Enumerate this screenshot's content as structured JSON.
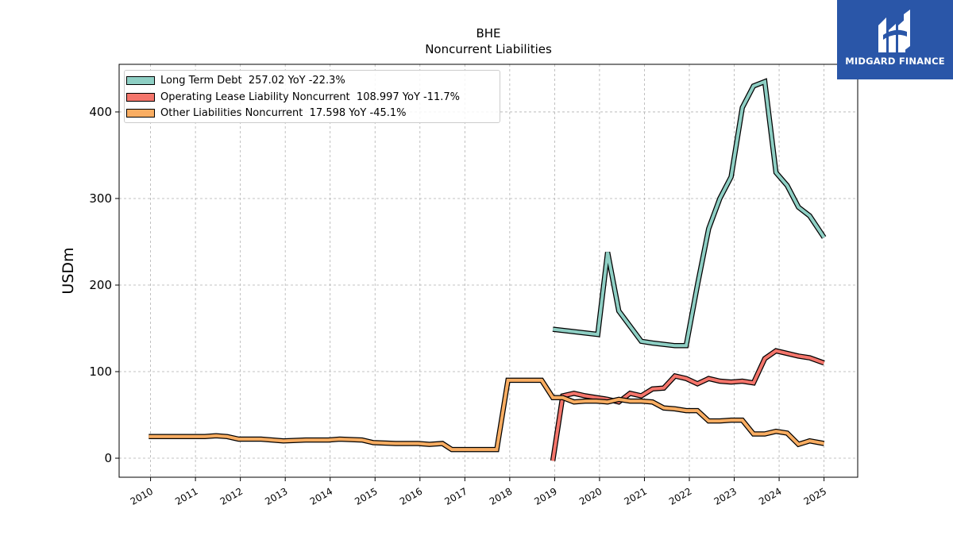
{
  "chart_data": {
    "type": "line",
    "title": "BHE",
    "subtitle": "Noncurrent  Liabilities",
    "ylabel": "USDm",
    "xlabel": "",
    "ylim": [
      -22,
      455
    ],
    "xlim": [
      2009.3,
      2025.75
    ],
    "yticks": [
      0,
      100,
      200,
      300,
      400
    ],
    "xticks": [
      "2010",
      "2011",
      "2012",
      "2013",
      "2014",
      "2015",
      "2016",
      "2017",
      "2018",
      "2019",
      "2020",
      "2021",
      "2022",
      "2023",
      "2024",
      "2025"
    ],
    "grid": true,
    "legend_position": "top-left",
    "series": [
      {
        "name": "Long Term Debt  257.02 YoY -22.3%",
        "color": "#8ecfc4",
        "points": [
          [
            2018.96,
            149
          ],
          [
            2019.96,
            143
          ],
          [
            2020.18,
            238
          ],
          [
            2020.43,
            170
          ],
          [
            2020.93,
            135
          ],
          [
            2021.18,
            133
          ],
          [
            2021.68,
            130
          ],
          [
            2021.93,
            130
          ],
          [
            2022.18,
            200
          ],
          [
            2022.43,
            265
          ],
          [
            2022.68,
            300
          ],
          [
            2022.93,
            325
          ],
          [
            2023.18,
            405
          ],
          [
            2023.43,
            430
          ],
          [
            2023.68,
            435
          ],
          [
            2023.93,
            330
          ],
          [
            2024.18,
            315
          ],
          [
            2024.43,
            290
          ],
          [
            2024.68,
            280
          ],
          [
            2025.0,
            255
          ]
        ]
      },
      {
        "name": "Operating Lease Liability Noncurrent  108.997 YoY -11.7%",
        "color": "#f4756b",
        "points": [
          [
            2018.96,
            -3
          ],
          [
            2019.18,
            72
          ],
          [
            2019.43,
            75
          ],
          [
            2019.68,
            72
          ],
          [
            2019.93,
            70
          ],
          [
            2020.18,
            68
          ],
          [
            2020.43,
            65
          ],
          [
            2020.68,
            75
          ],
          [
            2020.93,
            72
          ],
          [
            2021.18,
            80
          ],
          [
            2021.43,
            81
          ],
          [
            2021.68,
            95
          ],
          [
            2021.93,
            92
          ],
          [
            2022.18,
            86
          ],
          [
            2022.43,
            92
          ],
          [
            2022.68,
            89
          ],
          [
            2022.93,
            88
          ],
          [
            2023.18,
            89
          ],
          [
            2023.43,
            87
          ],
          [
            2023.68,
            115
          ],
          [
            2023.93,
            124
          ],
          [
            2024.18,
            121
          ],
          [
            2024.43,
            118
          ],
          [
            2024.68,
            116
          ],
          [
            2025.0,
            110
          ]
        ]
      },
      {
        "name": "Other Liabilities Noncurrent  17.598 YoY -45.1%",
        "color": "#f9ad62",
        "points": [
          [
            2009.96,
            25
          ],
          [
            2010.46,
            25
          ],
          [
            2010.96,
            25
          ],
          [
            2011.21,
            25
          ],
          [
            2011.46,
            26
          ],
          [
            2011.71,
            25
          ],
          [
            2011.96,
            22
          ],
          [
            2012.46,
            22
          ],
          [
            2012.96,
            20
          ],
          [
            2013.46,
            21
          ],
          [
            2013.96,
            21
          ],
          [
            2014.21,
            22
          ],
          [
            2014.71,
            21
          ],
          [
            2014.96,
            18
          ],
          [
            2015.46,
            17
          ],
          [
            2015.96,
            17
          ],
          [
            2016.21,
            16
          ],
          [
            2016.5,
            17
          ],
          [
            2016.71,
            10
          ],
          [
            2017.21,
            10
          ],
          [
            2017.71,
            10
          ],
          [
            2017.96,
            90
          ],
          [
            2018.21,
            90
          ],
          [
            2018.71,
            90
          ],
          [
            2018.96,
            70
          ],
          [
            2019.18,
            70
          ],
          [
            2019.43,
            65
          ],
          [
            2019.68,
            66
          ],
          [
            2019.93,
            66
          ],
          [
            2020.18,
            65
          ],
          [
            2020.43,
            68
          ],
          [
            2020.68,
            66
          ],
          [
            2020.93,
            66
          ],
          [
            2021.18,
            65
          ],
          [
            2021.43,
            58
          ],
          [
            2021.68,
            57
          ],
          [
            2021.93,
            55
          ],
          [
            2022.18,
            55
          ],
          [
            2022.43,
            43
          ],
          [
            2022.68,
            43
          ],
          [
            2022.93,
            44
          ],
          [
            2023.18,
            44
          ],
          [
            2023.43,
            28
          ],
          [
            2023.68,
            28
          ],
          [
            2023.93,
            31
          ],
          [
            2024.18,
            29
          ],
          [
            2024.43,
            16
          ],
          [
            2024.68,
            20
          ],
          [
            2025.0,
            17
          ]
        ]
      }
    ]
  },
  "logo": {
    "brand_name": "MIDGARD FINANCE",
    "background_color": "#2a56a8",
    "icon": "midgard-logo-icon"
  }
}
